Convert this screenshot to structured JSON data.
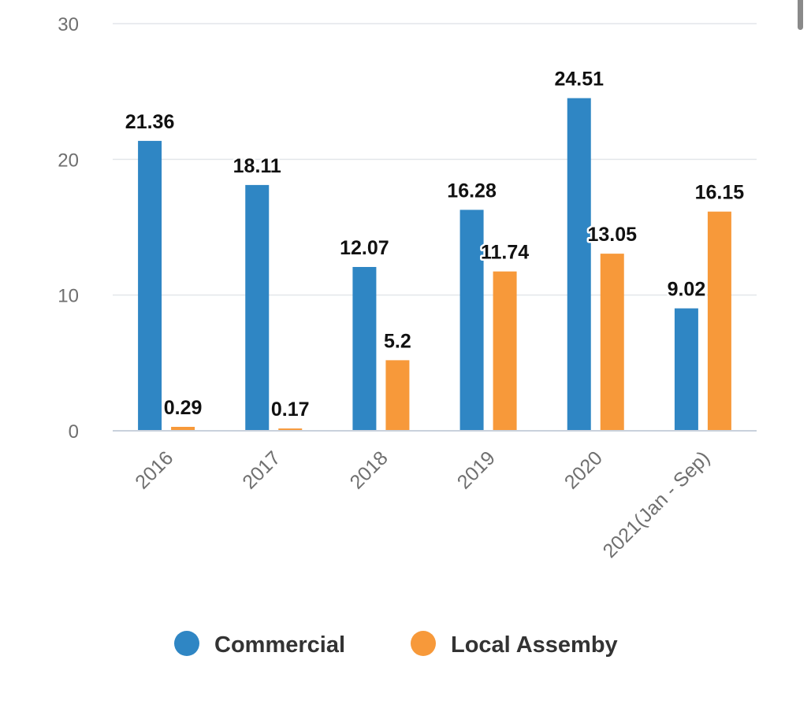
{
  "chart_data": {
    "type": "bar",
    "title": "",
    "xlabel": "",
    "ylabel": "",
    "ylim": [
      0,
      30
    ],
    "yticks": [
      0,
      10,
      20,
      30
    ],
    "categories": [
      "2016",
      "2017",
      "2018",
      "2019",
      "2020",
      "2021(Jan - Sep)"
    ],
    "series": [
      {
        "name": "Commercial",
        "color": "#2f86c4",
        "values": [
          21.36,
          18.11,
          12.07,
          16.28,
          24.51,
          9.02
        ],
        "labels": [
          "21.36",
          "18.11",
          "12.07",
          "16.28",
          "24.51",
          "9.02"
        ]
      },
      {
        "name": "Local Assemby",
        "color": "#f7993a",
        "values": [
          0.29,
          0.17,
          5.2,
          11.74,
          13.05,
          16.15
        ],
        "labels": [
          "0.29",
          "0.17",
          "5.2",
          "11.74",
          "13.05",
          "16.15"
        ]
      }
    ],
    "legend_position": "bottom-center",
    "grid": true
  }
}
